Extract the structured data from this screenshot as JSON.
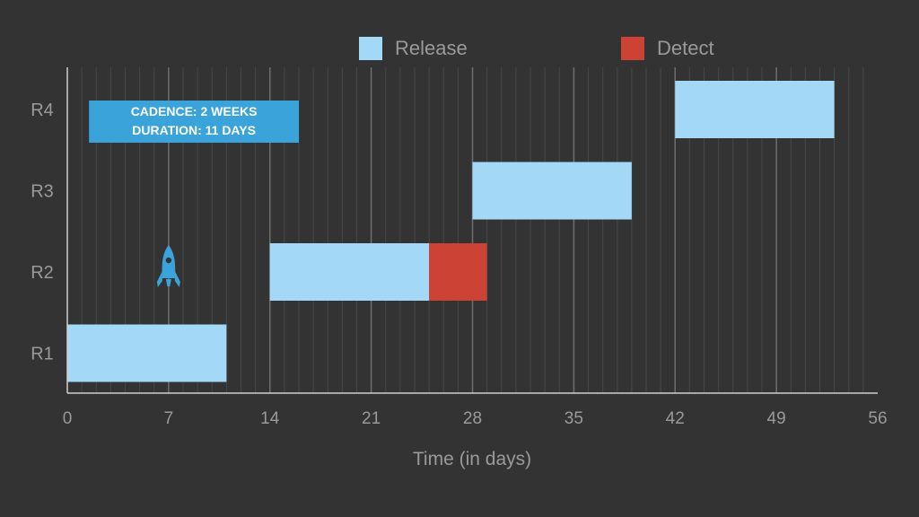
{
  "chart_data": {
    "type": "gantt",
    "xlabel": "Time (in days)",
    "xlim": [
      0,
      56
    ],
    "x_ticks": [
      "0",
      "7",
      "14",
      "21",
      "28",
      "35",
      "42",
      "49",
      "56"
    ],
    "rows": [
      "R1",
      "R2",
      "R3",
      "R4"
    ],
    "grid": true,
    "legend_position": "top",
    "series": [
      {
        "name": "Release",
        "color": "#a3d9f7"
      },
      {
        "name": "Detect",
        "color": "#cc4336"
      }
    ],
    "tasks": [
      {
        "row": "R1",
        "series": "Release",
        "start": 0,
        "end": 11
      },
      {
        "row": "R2",
        "series": "Release",
        "start": 14,
        "end": 25
      },
      {
        "row": "R2",
        "series": "Detect",
        "start": 25,
        "end": 29
      },
      {
        "row": "R3",
        "series": "Release",
        "start": 28,
        "end": 39
      },
      {
        "row": "R4",
        "series": "Release",
        "start": 42,
        "end": 53
      }
    ],
    "annotation": {
      "lines": [
        "CADENCE: 2 WEEKS",
        "DURATION: 11 DAYS"
      ],
      "row": "R4",
      "start": 1.5,
      "end": 16,
      "color": "#3aa3d9"
    },
    "marker": {
      "icon": "rocket-icon",
      "x": 7,
      "row": "R2",
      "color": "#3aa3d9"
    }
  }
}
